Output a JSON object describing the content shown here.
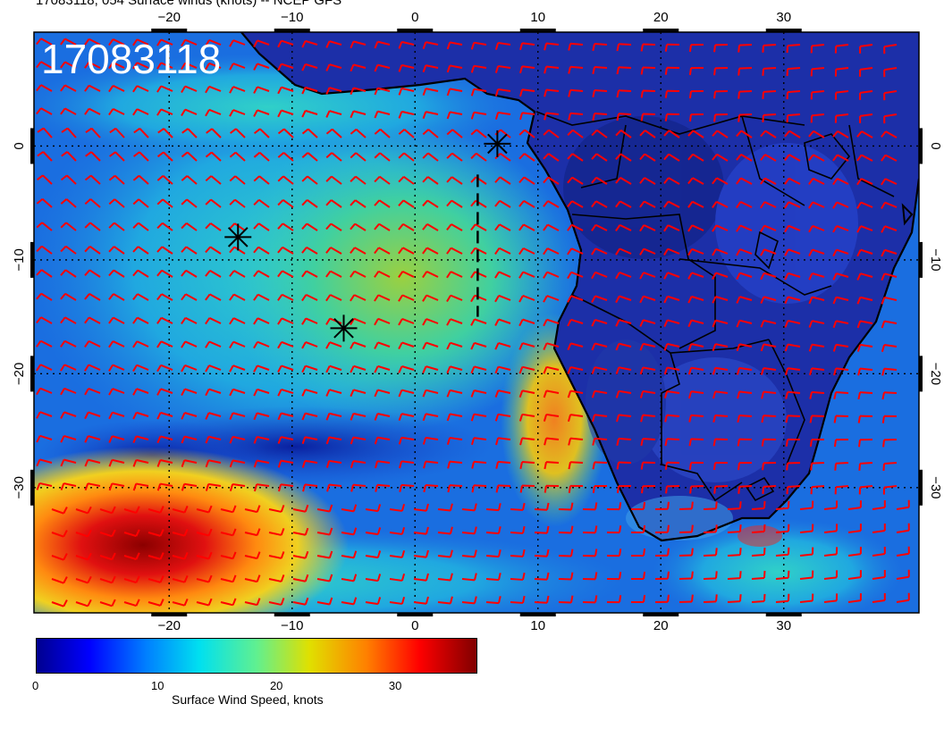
{
  "title": "17083118, 054 Surface winds (knots) -- NCEP GFS",
  "stamp": "17083118",
  "map": {
    "lon_range": [
      -31,
      41
    ],
    "lat_range": [
      -41,
      10
    ],
    "x_ticks": [
      {
        "value": -20,
        "label": "−20"
      },
      {
        "value": -10,
        "label": "−10"
      },
      {
        "value": 0,
        "label": "0"
      },
      {
        "value": 10,
        "label": "10"
      },
      {
        "value": 20,
        "label": "20"
      },
      {
        "value": 30,
        "label": "30"
      }
    ],
    "y_ticks": [
      {
        "value": 0,
        "label": "0"
      },
      {
        "value": -10,
        "label": "−10"
      },
      {
        "value": -20,
        "label": "−20"
      },
      {
        "value": -30,
        "label": "−30"
      }
    ],
    "storm_markers": [
      {
        "lon": 6.7,
        "lat": 0.2
      },
      {
        "lon": -14.4,
        "lat": -8.0
      },
      {
        "lon": -5.8,
        "lat": -16.0
      }
    ],
    "track": [
      [
        5.1,
        -2.5
      ],
      [
        5.1,
        -15.0
      ]
    ],
    "colors": {
      "barbs": "#ff0000",
      "coast": "#000000",
      "ocean_low": "#1535c8",
      "land": "#1a2a9a"
    }
  },
  "colorbar": {
    "title": "Surface Wind Speed, knots",
    "min": 0,
    "max": 37,
    "ticks": [
      {
        "value": 0,
        "label": "0"
      },
      {
        "value": 10,
        "label": "10"
      },
      {
        "value": 20,
        "label": "20"
      },
      {
        "value": 30,
        "label": "30"
      }
    ]
  }
}
